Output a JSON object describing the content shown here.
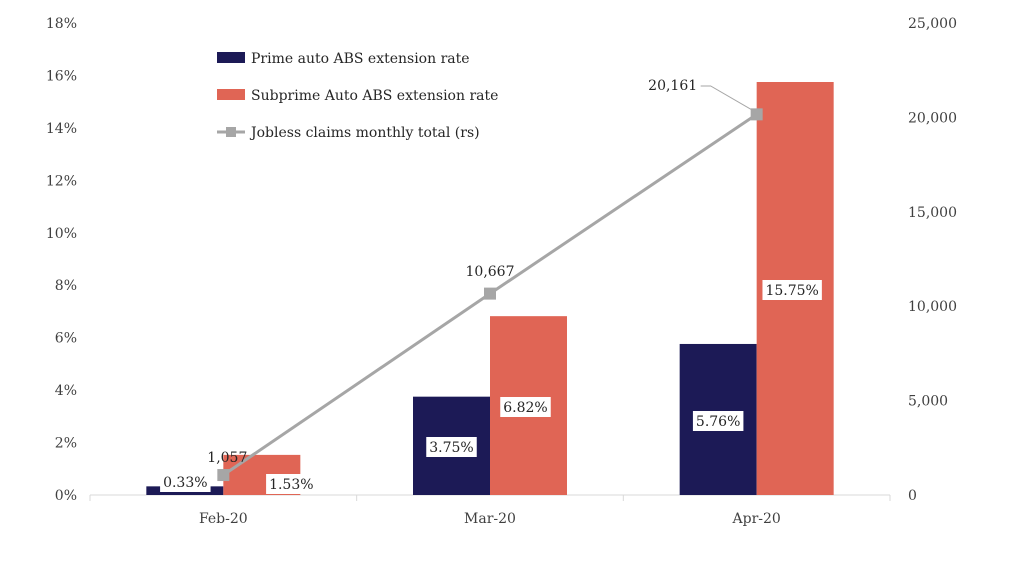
{
  "chart_data": {
    "type": "bar",
    "categories": [
      "Feb-20",
      "Mar-20",
      "Apr-20"
    ],
    "series": [
      {
        "name": "Prime auto ABS extension rate",
        "kind": "bar",
        "axis": "left",
        "color": "#1c1a56",
        "values": [
          0.33,
          3.75,
          5.76
        ],
        "labels": [
          "0.33%",
          "3.75%",
          "5.76%"
        ]
      },
      {
        "name": "Subprime Auto ABS extension rate",
        "kind": "bar",
        "axis": "left",
        "color": "#e06555",
        "values": [
          1.53,
          6.82,
          15.75
        ],
        "labels": [
          "1.53%",
          "6.82%",
          "15.75%"
        ]
      },
      {
        "name": "Jobless claims monthly total (rs)",
        "kind": "line",
        "axis": "right",
        "color": "#a6a6a6",
        "values": [
          1057,
          10667,
          20161
        ],
        "labels": [
          "1,057",
          "10,667",
          "20,161"
        ]
      }
    ],
    "y_left": {
      "ylim": [
        0,
        18
      ],
      "ticks": [
        0,
        2,
        4,
        6,
        8,
        10,
        12,
        14,
        16,
        18
      ],
      "tick_labels": [
        "0%",
        "2%",
        "4%",
        "6%",
        "8%",
        "10%",
        "12%",
        "14%",
        "16%",
        "18%"
      ]
    },
    "y_right": {
      "ylim": [
        0,
        25000
      ],
      "ticks": [
        0,
        5000,
        10000,
        15000,
        20000,
        25000
      ],
      "tick_labels": [
        "0",
        "5,000",
        "10,000",
        "15,000",
        "20,000",
        "25,000"
      ]
    },
    "grid": false,
    "legend_position": "top-left"
  }
}
